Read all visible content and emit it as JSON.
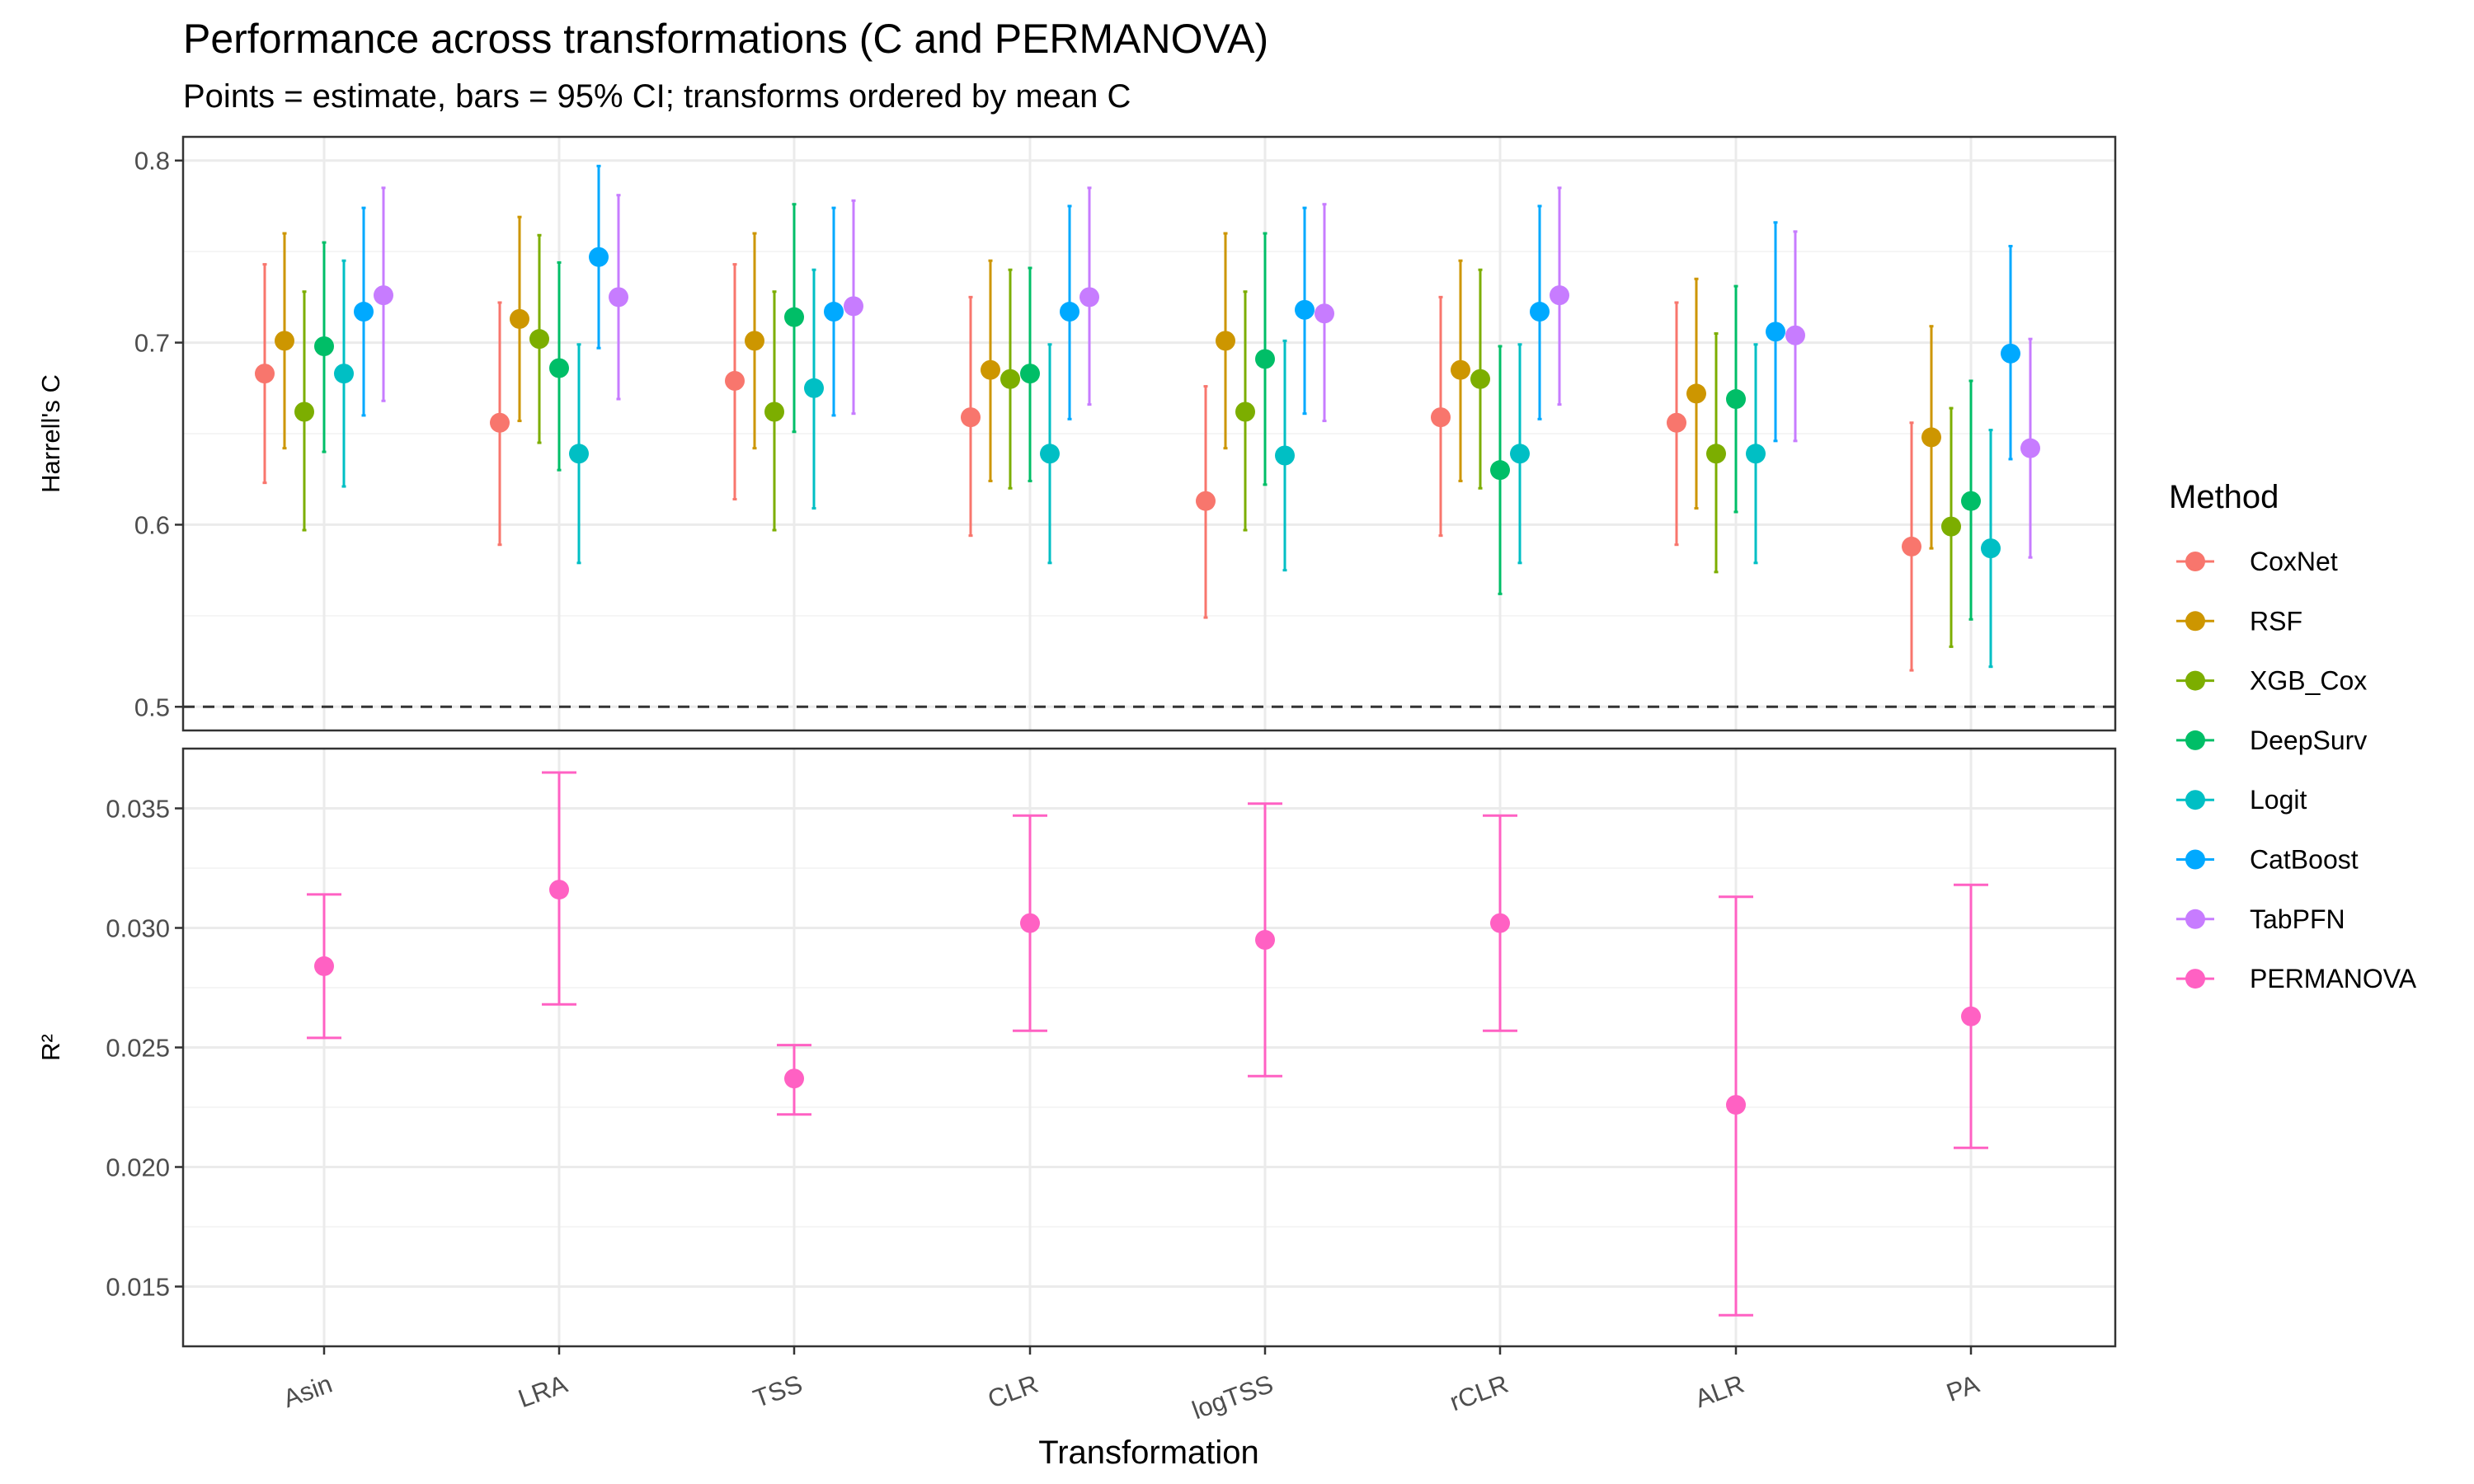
{
  "title": "Performance across transformations (C and PERMANOVA)",
  "subtitle": "Points = estimate, bars = 95% CI; transforms ordered by mean C",
  "chart_data": [
    {
      "type": "scatter",
      "panel": "top",
      "ylabel": "Harrell's C",
      "xlabel": "Transformation",
      "ylim": [
        0.487,
        0.813
      ],
      "yticks": [
        "0.5",
        "0.6",
        "0.7",
        "0.8"
      ],
      "reference_line": 0.5,
      "categories": [
        "Asin",
        "LRA",
        "TSS",
        "CLR",
        "logTSS",
        "rCLR",
        "ALR",
        "PA"
      ],
      "series": [
        {
          "name": "CoxNet",
          "color": "#F8766D",
          "values": [
            0.683,
            0.656,
            0.679,
            0.659,
            0.613,
            0.659,
            0.656,
            0.588
          ],
          "lower": [
            0.623,
            0.589,
            0.614,
            0.594,
            0.549,
            0.594,
            0.589,
            0.52
          ],
          "upper": [
            0.743,
            0.722,
            0.743,
            0.725,
            0.676,
            0.725,
            0.722,
            0.656
          ]
        },
        {
          "name": "RSF",
          "color": "#CD9600",
          "values": [
            0.701,
            0.713,
            0.701,
            0.685,
            0.701,
            0.685,
            0.672,
            0.648
          ],
          "lower": [
            0.642,
            0.657,
            0.642,
            0.624,
            0.642,
            0.624,
            0.609,
            0.587
          ],
          "upper": [
            0.76,
            0.769,
            0.76,
            0.745,
            0.76,
            0.745,
            0.735,
            0.709
          ]
        },
        {
          "name": "XGB_Cox",
          "color": "#7CAE00",
          "values": [
            0.662,
            0.702,
            0.662,
            0.68,
            0.662,
            0.68,
            0.639,
            0.599
          ],
          "lower": [
            0.597,
            0.645,
            0.597,
            0.62,
            0.597,
            0.62,
            0.574,
            0.533
          ],
          "upper": [
            0.728,
            0.759,
            0.728,
            0.74,
            0.728,
            0.74,
            0.705,
            0.664
          ]
        },
        {
          "name": "DeepSurv",
          "color": "#00BE67",
          "values": [
            0.698,
            0.686,
            0.714,
            0.683,
            0.691,
            0.63,
            0.669,
            0.613
          ],
          "lower": [
            0.64,
            0.63,
            0.651,
            0.624,
            0.622,
            0.562,
            0.607,
            0.548
          ],
          "upper": [
            0.755,
            0.744,
            0.776,
            0.741,
            0.76,
            0.698,
            0.731,
            0.679
          ]
        },
        {
          "name": "Logit",
          "color": "#00BFC4",
          "values": [
            0.683,
            0.639,
            0.675,
            0.639,
            0.638,
            0.639,
            0.639,
            0.587
          ],
          "lower": [
            0.621,
            0.579,
            0.609,
            0.579,
            0.575,
            0.579,
            0.579,
            0.522
          ],
          "upper": [
            0.745,
            0.699,
            0.74,
            0.699,
            0.701,
            0.699,
            0.699,
            0.652
          ]
        },
        {
          "name": "CatBoost",
          "color": "#00A9FF",
          "values": [
            0.717,
            0.747,
            0.717,
            0.717,
            0.718,
            0.717,
            0.706,
            0.694
          ],
          "lower": [
            0.66,
            0.697,
            0.66,
            0.658,
            0.661,
            0.658,
            0.646,
            0.636
          ],
          "upper": [
            0.774,
            0.797,
            0.774,
            0.775,
            0.774,
            0.775,
            0.766,
            0.753
          ]
        },
        {
          "name": "TabPFN",
          "color": "#C77CFF",
          "values": [
            0.726,
            0.725,
            0.72,
            0.725,
            0.716,
            0.726,
            0.704,
            0.642
          ],
          "lower": [
            0.668,
            0.669,
            0.661,
            0.666,
            0.657,
            0.666,
            0.646,
            0.582
          ],
          "upper": [
            0.785,
            0.781,
            0.778,
            0.785,
            0.776,
            0.785,
            0.761,
            0.702
          ]
        }
      ]
    },
    {
      "type": "scatter",
      "panel": "bottom",
      "ylabel": "R²",
      "xlabel": "Transformation",
      "ylim": [
        0.0125,
        0.0375
      ],
      "yticks": [
        "0.015",
        "0.020",
        "0.025",
        "0.030",
        "0.035"
      ],
      "categories": [
        "Asin",
        "LRA",
        "TSS",
        "CLR",
        "logTSS",
        "rCLR",
        "ALR",
        "PA"
      ],
      "series": [
        {
          "name": "PERMANOVA",
          "color": "#FF61C3",
          "values": [
            0.0284,
            0.0316,
            0.0237,
            0.0302,
            0.0295,
            0.0302,
            0.0226,
            0.0263
          ],
          "lower": [
            0.0254,
            0.0268,
            0.0222,
            0.0257,
            0.0238,
            0.0257,
            0.0138,
            0.0208
          ],
          "upper": [
            0.0314,
            0.0365,
            0.0251,
            0.0347,
            0.0352,
            0.0347,
            0.0313,
            0.0318
          ]
        }
      ]
    }
  ],
  "legend": {
    "title": "Method",
    "position": "right",
    "items": [
      {
        "name": "CoxNet",
        "color": "#F8766D"
      },
      {
        "name": "RSF",
        "color": "#CD9600"
      },
      {
        "name": "XGB_Cox",
        "color": "#7CAE00"
      },
      {
        "name": "DeepSurv",
        "color": "#00BE67"
      },
      {
        "name": "Logit",
        "color": "#00BFC4"
      },
      {
        "name": "CatBoost",
        "color": "#00A9FF"
      },
      {
        "name": "TabPFN",
        "color": "#C77CFF"
      },
      {
        "name": "PERMANOVA",
        "color": "#FF61C3"
      }
    ]
  },
  "colors": {
    "reference_line": "#333333",
    "grid": "#ebebeb",
    "border": "#333333"
  }
}
